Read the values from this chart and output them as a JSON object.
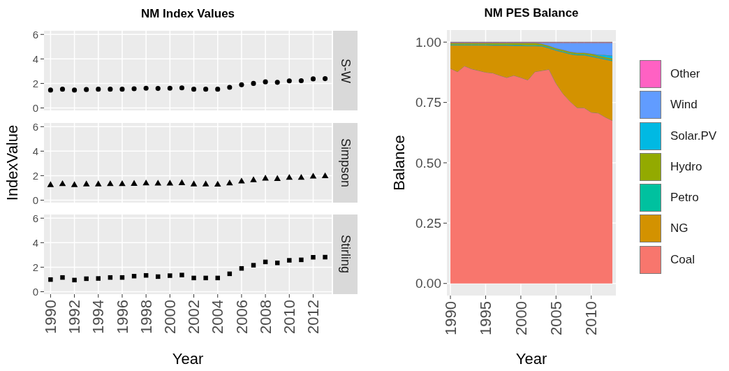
{
  "chart_data": [
    {
      "type": "scatter",
      "title": "NM Index Values",
      "x": [
        1990,
        1991,
        1992,
        1993,
        1994,
        1995,
        1996,
        1997,
        1998,
        1999,
        2000,
        2001,
        2002,
        2003,
        2004,
        2005,
        2006,
        2007,
        2008,
        2009,
        2010,
        2011,
        2012,
        2013
      ],
      "series": [
        {
          "name": "S-W",
          "color": "#000000",
          "values": [
            1.46,
            1.53,
            1.46,
            1.5,
            1.53,
            1.53,
            1.53,
            1.57,
            1.61,
            1.59,
            1.61,
            1.64,
            1.53,
            1.53,
            1.53,
            1.68,
            1.89,
            2.0,
            2.13,
            2.09,
            2.21,
            2.22,
            2.37,
            2.39
          ]
        }
      ],
      "xlim": [
        1989.45,
        2013.55
      ],
      "xticks": [
        1990,
        1992,
        1994,
        1996,
        1998,
        2000,
        2002,
        2004,
        2006,
        2008,
        2010,
        2012
      ],
      "ylim": [
        -0.2,
        6.3
      ],
      "yticks": [
        0,
        2,
        4,
        6
      ],
      "grid": true,
      "legend": false,
      "marker": "circle",
      "tick_labels": "y"
    },
    {
      "type": "scatter",
      "ylabel": "IndexValue",
      "x": [
        1990,
        1991,
        1992,
        1993,
        1994,
        1995,
        1996,
        1997,
        1998,
        1999,
        2000,
        2001,
        2002,
        2003,
        2004,
        2005,
        2006,
        2007,
        2008,
        2009,
        2010,
        2011,
        2012,
        2013
      ],
      "series": [
        {
          "name": "Simpson",
          "color": "#000000",
          "values": [
            1.23,
            1.31,
            1.23,
            1.29,
            1.29,
            1.31,
            1.31,
            1.33,
            1.37,
            1.35,
            1.35,
            1.39,
            1.29,
            1.29,
            1.27,
            1.37,
            1.52,
            1.63,
            1.76,
            1.73,
            1.82,
            1.82,
            1.92,
            1.95
          ]
        }
      ],
      "xlim": [
        1989.45,
        2013.55
      ],
      "xticks": [
        1990,
        1992,
        1994,
        1996,
        1998,
        2000,
        2002,
        2004,
        2006,
        2008,
        2010,
        2012
      ],
      "ylim": [
        -0.2,
        6.3
      ],
      "yticks": [
        0,
        2,
        4,
        6
      ],
      "grid": true,
      "legend": false,
      "marker": "triangle",
      "tick_labels": "y"
    },
    {
      "type": "scatter",
      "xlabel": "Year",
      "x": [
        1990,
        1991,
        1992,
        1993,
        1994,
        1995,
        1996,
        1997,
        1998,
        1999,
        2000,
        2001,
        2002,
        2003,
        2004,
        2005,
        2006,
        2007,
        2008,
        2009,
        2010,
        2011,
        2012,
        2013
      ],
      "series": [
        {
          "name": "Stirling",
          "color": "#000000",
          "values": [
            0.99,
            1.16,
            0.95,
            1.06,
            1.08,
            1.16,
            1.16,
            1.27,
            1.33,
            1.23,
            1.31,
            1.36,
            1.12,
            1.12,
            1.12,
            1.46,
            1.9,
            2.16,
            2.43,
            2.35,
            2.56,
            2.6,
            2.81,
            2.82
          ]
        }
      ],
      "xlim": [
        1989.45,
        2013.55
      ],
      "xticks": [
        1990,
        1992,
        1994,
        1996,
        1998,
        2000,
        2002,
        2004,
        2006,
        2008,
        2010,
        2012
      ],
      "ylim": [
        -0.2,
        6.3
      ],
      "yticks": [
        0,
        2,
        4,
        6
      ],
      "grid": true,
      "legend": false,
      "marker": "square"
    },
    {
      "type": "area",
      "stacked": true,
      "title": "NM PES Balance",
      "xlabel": "Year",
      "ylabel": "Balance",
      "x": [
        1990,
        1991,
        1992,
        1993,
        1994,
        1995,
        1996,
        1997,
        1998,
        1999,
        2000,
        2001,
        2002,
        2003,
        2004,
        2005,
        2006,
        2007,
        2008,
        2009,
        2010,
        2011,
        2012,
        2013
      ],
      "series": [
        {
          "name": "Coal",
          "color": "#f8766d",
          "values": [
            0.891,
            0.877,
            0.901,
            0.889,
            0.882,
            0.875,
            0.872,
            0.862,
            0.853,
            0.862,
            0.853,
            0.843,
            0.877,
            0.882,
            0.887,
            0.829,
            0.786,
            0.754,
            0.728,
            0.728,
            0.709,
            0.706,
            0.689,
            0.675
          ]
        },
        {
          "name": "NG",
          "color": "#d39200",
          "values": [
            0.096,
            0.11,
            0.086,
            0.098,
            0.105,
            0.112,
            0.114,
            0.124,
            0.133,
            0.123,
            0.132,
            0.141,
            0.107,
            0.101,
            0.088,
            0.136,
            0.172,
            0.196,
            0.218,
            0.218,
            0.231,
            0.228,
            0.239,
            0.247
          ]
        },
        {
          "name": "Petro",
          "color": "#00c19f",
          "values": [
            0.004,
            0.004,
            0.004,
            0.004,
            0.004,
            0.004,
            0.004,
            0.004,
            0.004,
            0.004,
            0.004,
            0.004,
            0.004,
            0.004,
            0.004,
            0.004,
            0.004,
            0.004,
            0.004,
            0.004,
            0.004,
            0.004,
            0.004,
            0.004
          ]
        },
        {
          "name": "Hydro",
          "color": "#93aa00",
          "values": [
            0.006,
            0.006,
            0.006,
            0.006,
            0.006,
            0.006,
            0.007,
            0.007,
            0.007,
            0.008,
            0.008,
            0.009,
            0.009,
            0.006,
            0.006,
            0.006,
            0.006,
            0.006,
            0.006,
            0.006,
            0.008,
            0.006,
            0.006,
            0.006
          ]
        },
        {
          "name": "Solar.PV",
          "color": "#00b9e3",
          "values": [
            0,
            0,
            0,
            0,
            0,
            0,
            0,
            0,
            0,
            0,
            0,
            0,
            0,
            0,
            0,
            0,
            0,
            0,
            0,
            0,
            0,
            0.005,
            0.009,
            0.012
          ]
        },
        {
          "name": "Wind",
          "color": "#619cff",
          "values": [
            0,
            0,
            0,
            0,
            0,
            0,
            0,
            0,
            0,
            0,
            0,
            0,
            0,
            0.004,
            0.012,
            0.022,
            0.029,
            0.037,
            0.041,
            0.041,
            0.045,
            0.048,
            0.05,
            0.053
          ]
        },
        {
          "name": "Other",
          "color": "#ff61c3",
          "values": [
            0.003,
            0.003,
            0.003,
            0.003,
            0.003,
            0.003,
            0.003,
            0.003,
            0.003,
            0.003,
            0.003,
            0.003,
            0.003,
            0.003,
            0.003,
            0.003,
            0.003,
            0.003,
            0.003,
            0.003,
            0.003,
            0.003,
            0.003,
            0.003
          ]
        }
      ],
      "xlim": [
        1989.5,
        2013.5
      ],
      "xticks": [
        1990,
        1995,
        2000,
        2005,
        2010
      ],
      "ylim": [
        -0.05,
        1.05
      ],
      "yticks": [
        {
          "value": 0,
          "label": "0.00"
        },
        {
          "value": 0.25,
          "label": "0.25"
        },
        {
          "value": 0.5,
          "label": "0.50"
        },
        {
          "value": 0.75,
          "label": "0.75"
        },
        {
          "value": 1,
          "label": "1.00"
        }
      ],
      "grid": true,
      "legend": "right"
    }
  ]
}
